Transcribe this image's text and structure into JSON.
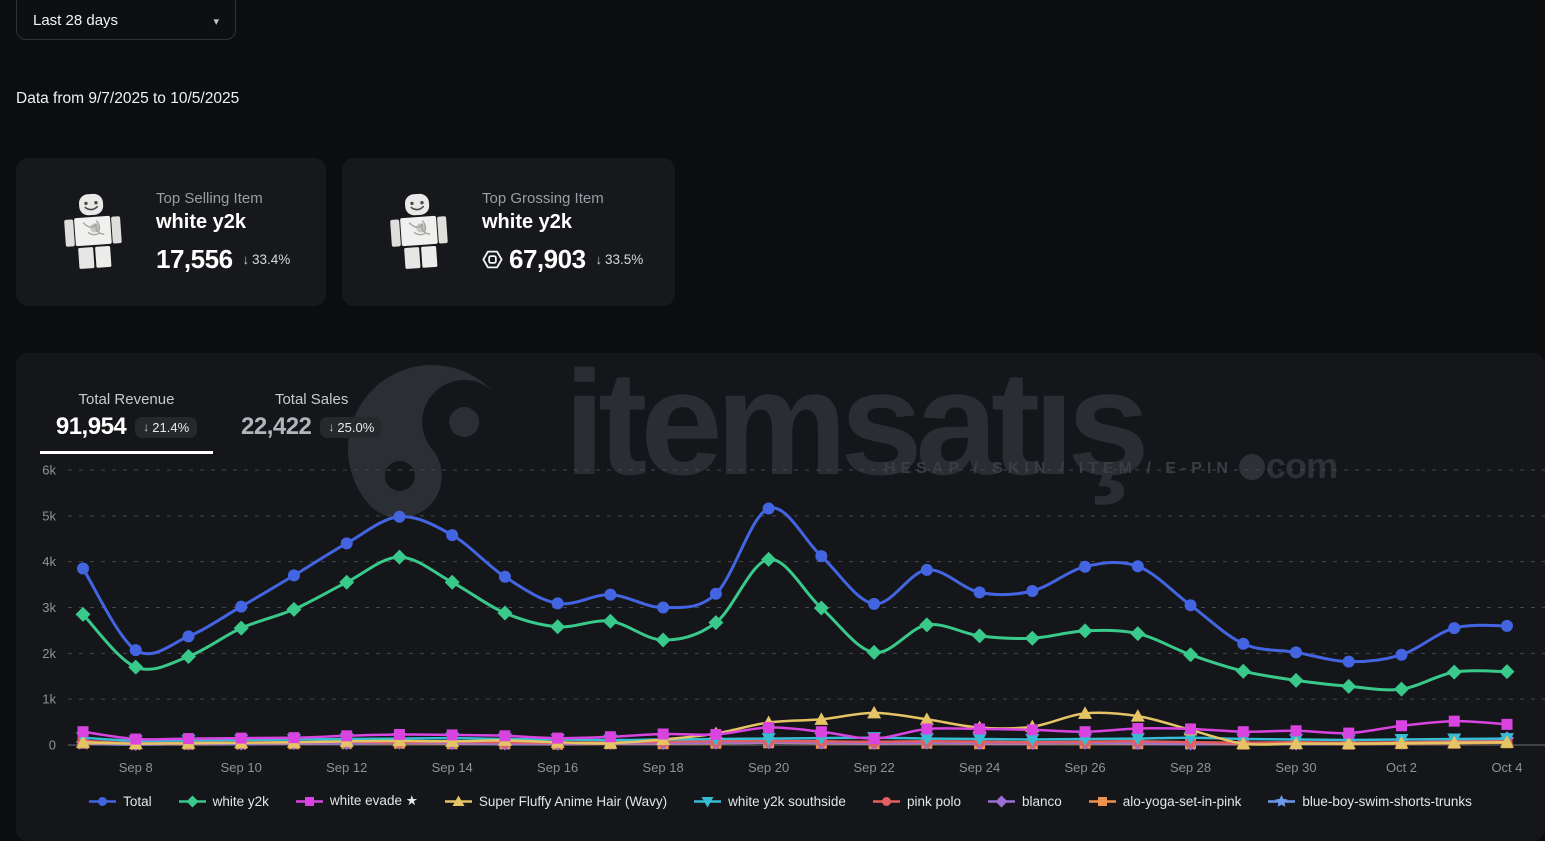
{
  "controls": {
    "date_range_label": "Last 28 days",
    "caret": "▾"
  },
  "subtitle": "Data from 9/7/2025 to 10/5/2025",
  "cards": [
    {
      "label": "Top Selling Item",
      "item": "white y2k",
      "value": "17,556",
      "delta_arrow": "↓",
      "delta": "33.4%"
    },
    {
      "label": "Top Grossing Item",
      "item": "white y2k",
      "value": "67,903",
      "delta_arrow": "↓",
      "delta": "33.5%",
      "currency_icon": "robux"
    }
  ],
  "stats_tabs": [
    {
      "label": "Total Revenue",
      "value": "91,954",
      "delta_arrow": "↓",
      "delta": "21.4%",
      "active": true
    },
    {
      "label": "Total Sales",
      "value": "22,422",
      "delta_arrow": "↓",
      "delta": "25.0%",
      "active": false
    }
  ],
  "watermark": {
    "word": "itemsatış",
    "tagline": "HESAP / SKIN / ITEM / E-PIN",
    "suffix": "com"
  },
  "chart_data": {
    "type": "line",
    "title": "",
    "xlabel": "",
    "ylabel": "",
    "ylim": [
      0,
      6000
    ],
    "grid": "horizontal-dashed",
    "legend_position": "bottom",
    "days": 28,
    "x_dates": [
      "Sep 7",
      "Sep 8",
      "Sep 9",
      "Sep 10",
      "Sep 11",
      "Sep 12",
      "Sep 13",
      "Sep 14",
      "Sep 15",
      "Sep 16",
      "Sep 17",
      "Sep 18",
      "Sep 19",
      "Sep 20",
      "Sep 21",
      "Sep 22",
      "Sep 23",
      "Sep 24",
      "Sep 25",
      "Sep 26",
      "Sep 27",
      "Sep 28",
      "Sep 29",
      "Sep 30",
      "Oct 1",
      "Oct 2",
      "Oct 3",
      "Oct 4"
    ],
    "x_tick_labels": [
      "Sep 8",
      "Sep 10",
      "Sep 12",
      "Sep 14",
      "Sep 16",
      "Sep 18",
      "Sep 20",
      "Sep 22",
      "Sep 24",
      "Sep 26",
      "Sep 28",
      "Sep 30",
      "Oct 2",
      "Oct 4"
    ],
    "y_ticks": [
      "0",
      "1k",
      "2k",
      "3k",
      "4k",
      "5k",
      "6k"
    ],
    "series": [
      {
        "name": "Total",
        "color": "#4365e2",
        "marker": "circle",
        "values": [
          3850,
          2070,
          2370,
          3020,
          3700,
          4400,
          4980,
          4580,
          3670,
          3090,
          3280,
          3000,
          3300,
          5160,
          4120,
          3080,
          3820,
          3330,
          3360,
          3890,
          3900,
          3050,
          2210,
          2020,
          1820,
          1970,
          2550,
          2600
        ]
      },
      {
        "name": "white y2k",
        "color": "#38c98b",
        "marker": "diamond",
        "values": [
          2850,
          1700,
          1930,
          2550,
          2960,
          3550,
          4100,
          3550,
          2880,
          2580,
          2700,
          2290,
          2670,
          4050,
          2990,
          2020,
          2620,
          2380,
          2330,
          2490,
          2430,
          1970,
          1610,
          1410,
          1280,
          1220,
          1590,
          1600
        ]
      },
      {
        "name": "white evade ★",
        "color": "#d944e0",
        "marker": "square",
        "values": [
          290,
          130,
          140,
          150,
          160,
          200,
          230,
          220,
          200,
          150,
          180,
          240,
          230,
          380,
          290,
          140,
          350,
          350,
          330,
          290,
          360,
          350,
          290,
          310,
          260,
          420,
          520,
          450
        ]
      },
      {
        "name": "Super Fluffy Anime Hair (Wavy)",
        "color": "#e5c465",
        "marker": "triangle-up",
        "values": [
          60,
          30,
          40,
          50,
          60,
          80,
          90,
          80,
          100,
          60,
          40,
          120,
          250,
          490,
          560,
          700,
          560,
          380,
          400,
          690,
          630,
          330,
          30,
          30,
          30,
          40,
          50,
          60
        ]
      },
      {
        "name": "white y2k southside",
        "color": "#37bcd4",
        "marker": "triangle-down",
        "values": [
          160,
          90,
          100,
          110,
          120,
          130,
          140,
          150,
          130,
          120,
          110,
          120,
          130,
          140,
          150,
          160,
          140,
          130,
          120,
          130,
          140,
          160,
          130,
          120,
          110,
          120,
          130,
          140
        ]
      },
      {
        "name": "pink polo",
        "color": "#e25f5f",
        "marker": "circle",
        "values": [
          90,
          40,
          50,
          50,
          60,
          70,
          60,
          70,
          60,
          50,
          60,
          70,
          80,
          90,
          80,
          70,
          80,
          70,
          60,
          70,
          80,
          60,
          50,
          60,
          50,
          60,
          70,
          80
        ]
      },
      {
        "name": "blanco",
        "color": "#9a6fd6",
        "marker": "diamond",
        "values": [
          60,
          20,
          30,
          30,
          40,
          40,
          50,
          40,
          30,
          30,
          40,
          40,
          50,
          60,
          50,
          40,
          50,
          40,
          40,
          50,
          40,
          30,
          40,
          30,
          40,
          50,
          80,
          150
        ]
      },
      {
        "name": "alo-yoga-set-in-pink",
        "color": "#ef924e",
        "marker": "square",
        "values": [
          40,
          20,
          20,
          30,
          30,
          40,
          40,
          30,
          30,
          20,
          30,
          30,
          40,
          50,
          40,
          30,
          40,
          30,
          30,
          40,
          30,
          30,
          20,
          30,
          20,
          30,
          40,
          50
        ]
      },
      {
        "name": "blue-boy-swim-shorts-trunks",
        "color": "#6d99ec",
        "marker": "star",
        "values": [
          30,
          10,
          20,
          20,
          30,
          30,
          40,
          30,
          20,
          20,
          30,
          30,
          40,
          50,
          40,
          30,
          40,
          30,
          30,
          40,
          30,
          20,
          30,
          20,
          30,
          40,
          60,
          110
        ]
      }
    ]
  }
}
